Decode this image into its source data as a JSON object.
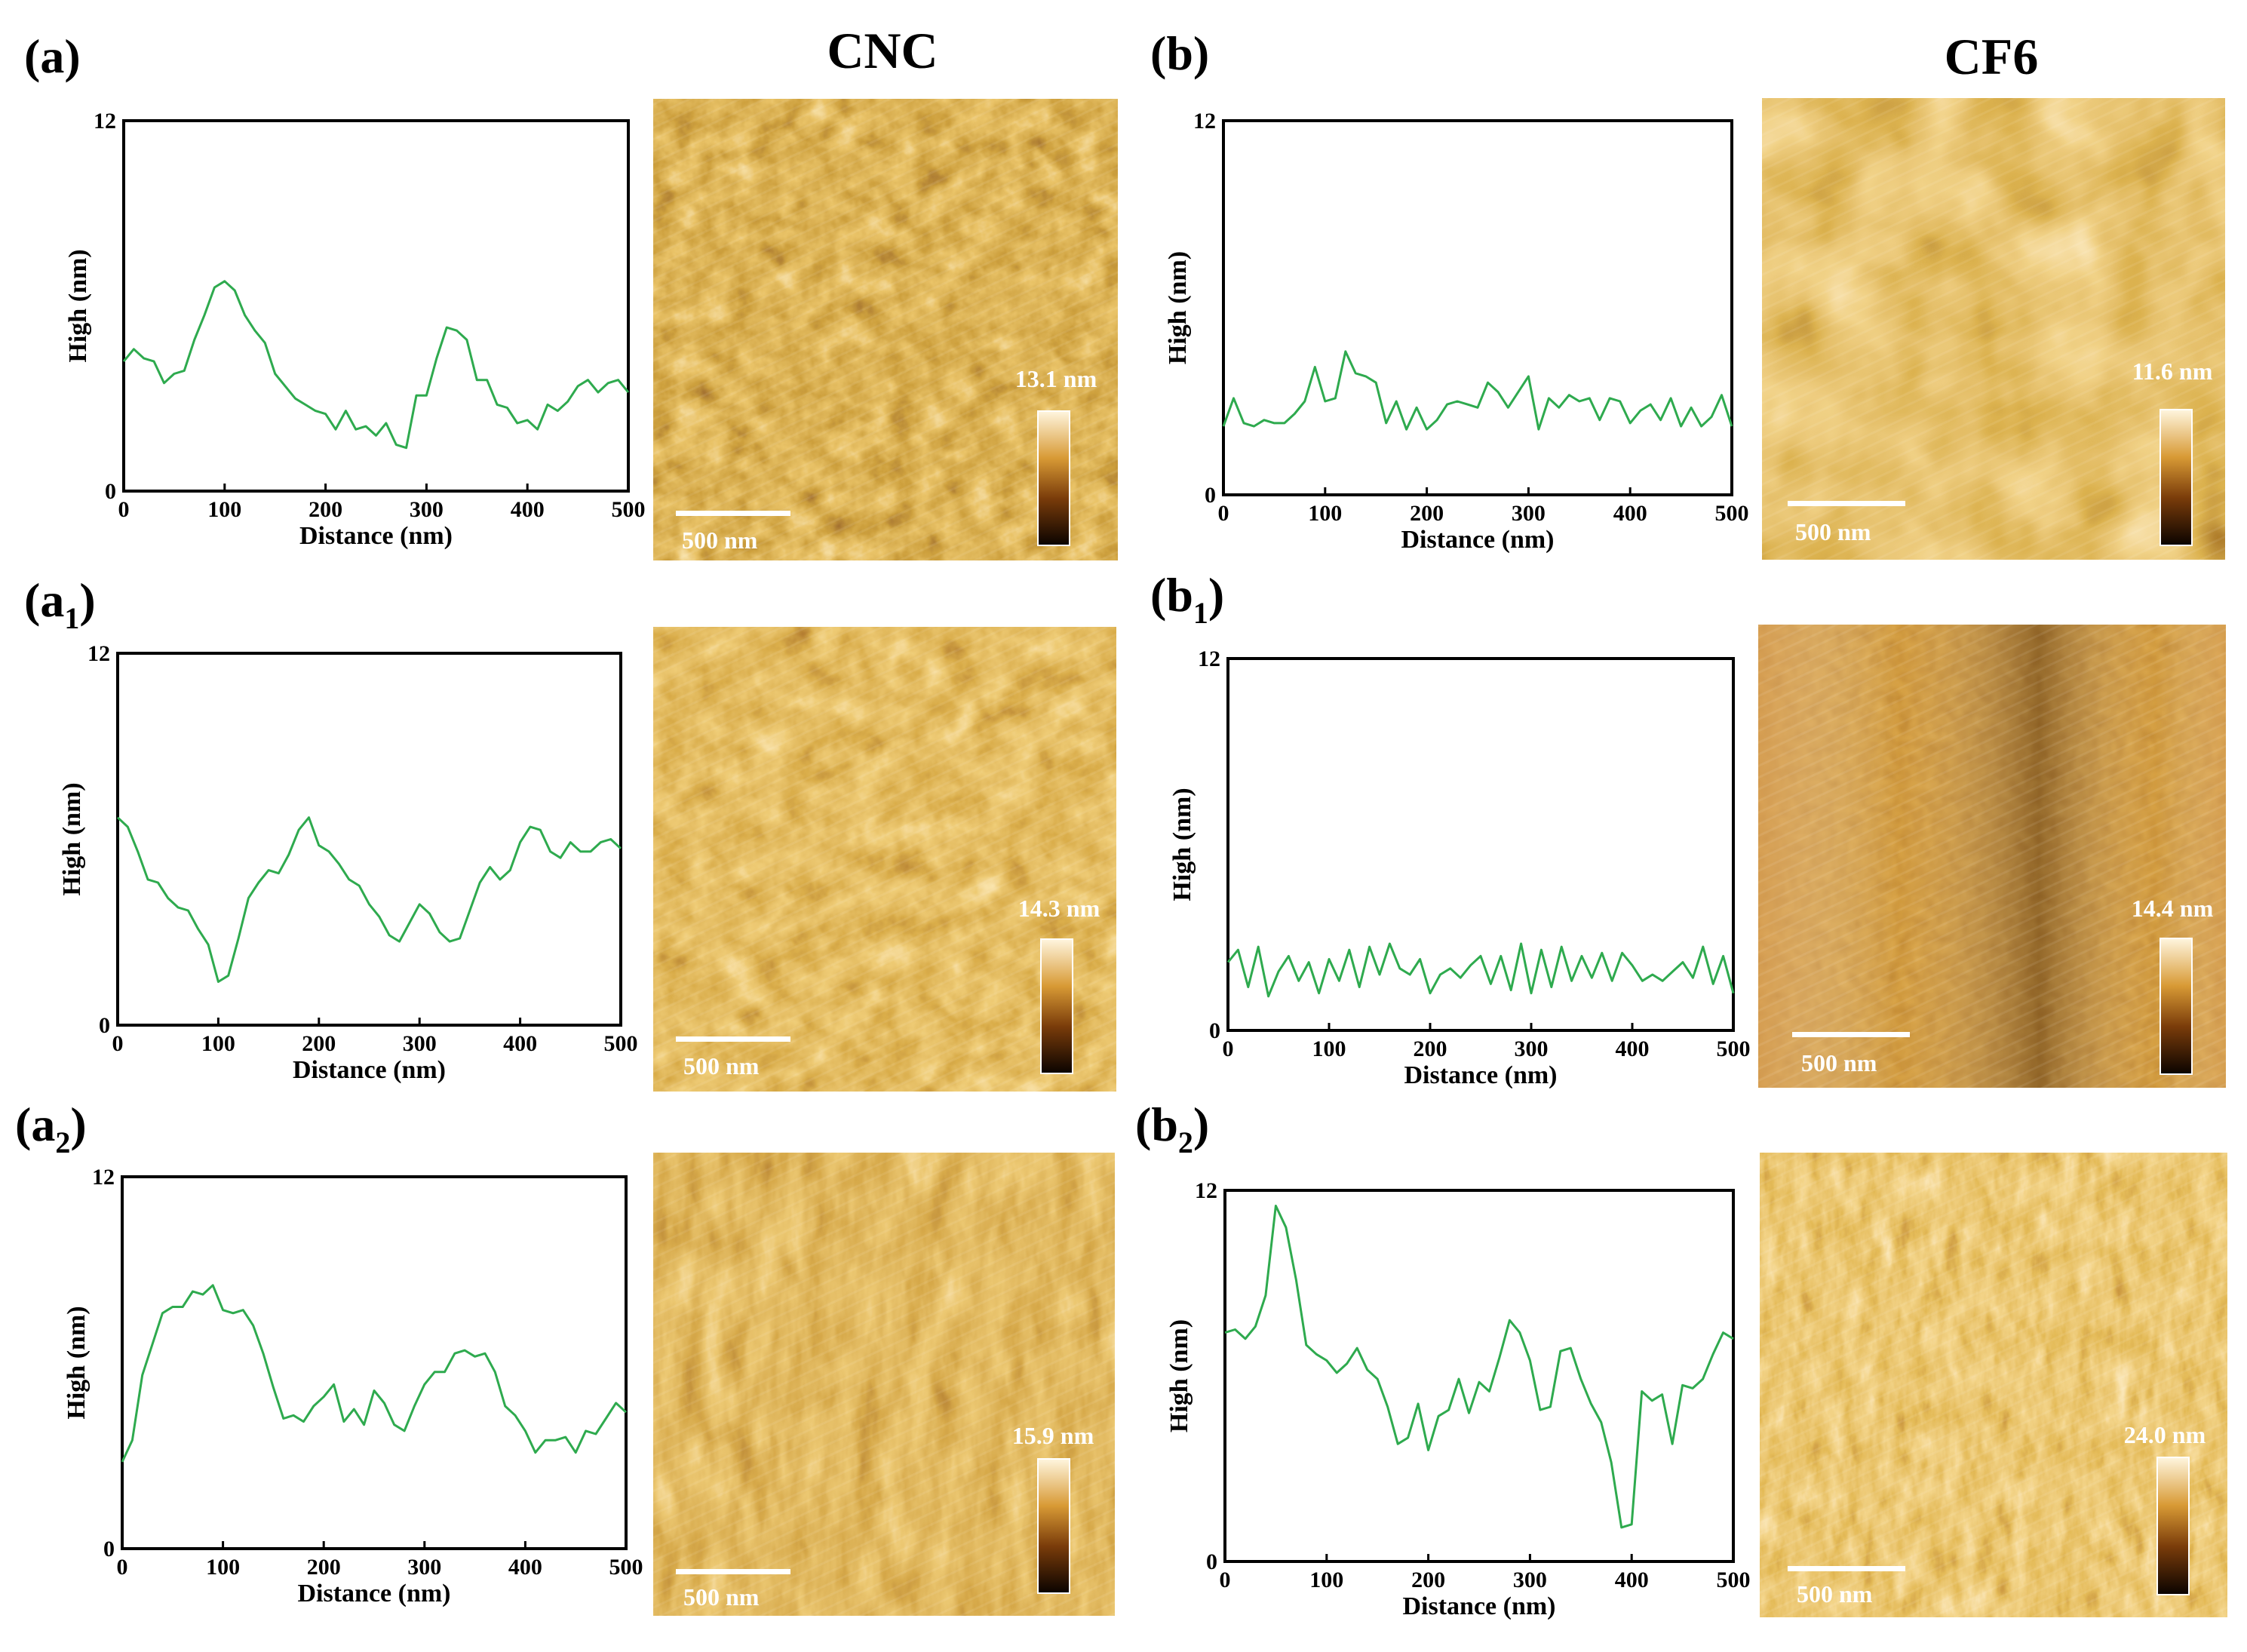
{
  "columns": {
    "left": "CNC",
    "right": "CF6"
  },
  "axis_common": {
    "xlabel": "Distance (nm)",
    "ylabel": "High (nm)"
  },
  "colors": {
    "line": "#2eaa4e",
    "afm_dark": "#2a0e02",
    "afm_mid": "#a8620f",
    "afm_light": "#fff6df"
  },
  "panels": [
    {
      "id": "a",
      "label": "(a)",
      "sub": "",
      "scale_value": "13.1 nm",
      "scalebar_label": "500 nm"
    },
    {
      "id": "a1",
      "label": "(a",
      "sub": "1",
      "scale_value": "14.3 nm",
      "scalebar_label": "500 nm"
    },
    {
      "id": "a2",
      "label": "(a",
      "sub": "2",
      "scale_value": "15.9 nm",
      "scalebar_label": "500 nm"
    },
    {
      "id": "b",
      "label": "(b)",
      "sub": "",
      "scale_value": "11.6 nm",
      "scalebar_label": "500 nm"
    },
    {
      "id": "b1",
      "label": "(b",
      "sub": "1",
      "scale_value": "14.4 nm",
      "scalebar_label": "500 nm"
    },
    {
      "id": "b2",
      "label": "(b",
      "sub": "2",
      "scale_value": "24.0 nm",
      "scalebar_label": "500 nm"
    }
  ],
  "chart_data": [
    {
      "id": "a",
      "type": "line",
      "title": "",
      "xlabel": "Distance (nm)",
      "ylabel": "High (nm)",
      "xlim": [
        0,
        500
      ],
      "ylim": [
        0,
        12
      ],
      "xticks": [
        0,
        100,
        200,
        300,
        400,
        500
      ],
      "yticks": [
        0,
        12
      ],
      "x": [
        0,
        10,
        20,
        30,
        40,
        50,
        60,
        70,
        80,
        90,
        100,
        110,
        120,
        130,
        140,
        150,
        160,
        170,
        180,
        190,
        200,
        210,
        220,
        230,
        240,
        250,
        260,
        270,
        280,
        290,
        300,
        310,
        320,
        330,
        340,
        350,
        360,
        370,
        380,
        390,
        400,
        410,
        420,
        430,
        440,
        450,
        460,
        470,
        480,
        490,
        500
      ],
      "y": [
        4.2,
        4.6,
        4.3,
        4.2,
        3.5,
        3.8,
        3.9,
        4.9,
        5.7,
        6.6,
        6.8,
        6.5,
        5.7,
        5.2,
        4.8,
        3.8,
        3.4,
        3.0,
        2.8,
        2.6,
        2.5,
        2.0,
        2.6,
        2.0,
        2.1,
        1.8,
        2.2,
        1.5,
        1.4,
        3.1,
        3.1,
        4.3,
        5.3,
        5.2,
        4.9,
        3.6,
        3.6,
        2.8,
        2.7,
        2.2,
        2.3,
        2.0,
        2.8,
        2.6,
        2.9,
        3.4,
        3.6,
        3.2,
        3.5,
        3.6,
        3.2
      ]
    },
    {
      "id": "a1",
      "type": "line",
      "title": "",
      "xlabel": "Distance (nm)",
      "ylabel": "High (nm)",
      "xlim": [
        0,
        500
      ],
      "ylim": [
        0,
        12
      ],
      "xticks": [
        0,
        100,
        200,
        300,
        400,
        500
      ],
      "yticks": [
        0,
        12
      ],
      "x": [
        0,
        10,
        20,
        30,
        40,
        50,
        60,
        70,
        80,
        90,
        100,
        110,
        120,
        130,
        140,
        150,
        160,
        170,
        180,
        190,
        200,
        210,
        220,
        230,
        240,
        250,
        260,
        270,
        280,
        290,
        300,
        310,
        320,
        330,
        340,
        350,
        360,
        370,
        380,
        390,
        400,
        410,
        420,
        430,
        440,
        450,
        460,
        470,
        480,
        490,
        500
      ],
      "y": [
        6.7,
        6.4,
        5.6,
        4.7,
        4.6,
        4.1,
        3.8,
        3.7,
        3.1,
        2.6,
        1.4,
        1.6,
        2.8,
        4.1,
        4.6,
        5.0,
        4.9,
        5.5,
        6.3,
        6.7,
        5.8,
        5.6,
        5.2,
        4.7,
        4.5,
        3.9,
        3.5,
        2.9,
        2.7,
        3.3,
        3.9,
        3.6,
        3.0,
        2.7,
        2.8,
        3.7,
        4.6,
        5.1,
        4.7,
        5.0,
        5.9,
        6.4,
        6.3,
        5.6,
        5.4,
        5.9,
        5.6,
        5.6,
        5.9,
        6.0,
        5.7
      ]
    },
    {
      "id": "a2",
      "type": "line",
      "title": "",
      "xlabel": "Distance (nm)",
      "ylabel": "High (nm)",
      "xlim": [
        0,
        500
      ],
      "ylim": [
        0,
        12
      ],
      "xticks": [
        0,
        100,
        200,
        300,
        400,
        500
      ],
      "yticks": [
        0,
        12
      ],
      "x": [
        0,
        10,
        20,
        30,
        40,
        50,
        60,
        70,
        80,
        90,
        100,
        110,
        120,
        130,
        140,
        150,
        160,
        170,
        180,
        190,
        200,
        210,
        220,
        230,
        240,
        250,
        260,
        270,
        280,
        290,
        300,
        310,
        320,
        330,
        340,
        350,
        360,
        370,
        380,
        390,
        400,
        410,
        420,
        430,
        440,
        450,
        460,
        470,
        480,
        490,
        500
      ],
      "y": [
        2.8,
        3.5,
        5.6,
        6.6,
        7.6,
        7.8,
        7.8,
        8.3,
        8.2,
        8.5,
        7.7,
        7.6,
        7.7,
        7.2,
        6.3,
        5.2,
        4.2,
        4.3,
        4.1,
        4.6,
        4.9,
        5.3,
        4.1,
        4.5,
        4.0,
        5.1,
        4.7,
        4.0,
        3.8,
        4.6,
        5.3,
        5.7,
        5.7,
        6.3,
        6.4,
        6.2,
        6.3,
        5.7,
        4.6,
        4.3,
        3.8,
        3.1,
        3.5,
        3.5,
        3.6,
        3.1,
        3.8,
        3.7,
        4.2,
        4.7,
        4.4
      ]
    },
    {
      "id": "b",
      "type": "line",
      "title": "",
      "xlabel": "Distance (nm)",
      "ylabel": "High (nm)",
      "xlim": [
        0,
        500
      ],
      "ylim": [
        0,
        12
      ],
      "xticks": [
        0,
        100,
        200,
        300,
        400,
        500
      ],
      "yticks": [
        0,
        12
      ],
      "x": [
        0,
        10,
        20,
        30,
        40,
        50,
        60,
        70,
        80,
        90,
        100,
        110,
        120,
        130,
        140,
        150,
        160,
        170,
        180,
        190,
        200,
        210,
        220,
        230,
        240,
        250,
        260,
        270,
        280,
        290,
        300,
        310,
        320,
        330,
        340,
        350,
        360,
        370,
        380,
        390,
        400,
        410,
        420,
        430,
        440,
        450,
        460,
        470,
        480,
        490,
        500
      ],
      "y": [
        2.2,
        3.1,
        2.3,
        2.2,
        2.4,
        2.3,
        2.3,
        2.6,
        3.0,
        4.1,
        3.0,
        3.1,
        4.6,
        3.9,
        3.8,
        3.6,
        2.3,
        3.0,
        2.1,
        2.8,
        2.1,
        2.4,
        2.9,
        3.0,
        2.9,
        2.8,
        3.6,
        3.3,
        2.8,
        3.3,
        3.8,
        2.1,
        3.1,
        2.8,
        3.2,
        3.0,
        3.1,
        2.4,
        3.1,
        3.0,
        2.3,
        2.7,
        2.9,
        2.4,
        3.1,
        2.2,
        2.8,
        2.2,
        2.5,
        3.2,
        2.2
      ]
    },
    {
      "id": "b1",
      "type": "line",
      "title": "",
      "xlabel": "Distance (nm)",
      "ylabel": "High (nm)",
      "xlim": [
        0,
        500
      ],
      "ylim": [
        0,
        12
      ],
      "xticks": [
        0,
        100,
        200,
        300,
        400,
        500
      ],
      "yticks": [
        0,
        12
      ],
      "x": [
        0,
        10,
        20,
        30,
        40,
        50,
        60,
        70,
        80,
        90,
        100,
        110,
        120,
        130,
        140,
        150,
        160,
        170,
        180,
        190,
        200,
        210,
        220,
        230,
        240,
        250,
        260,
        270,
        280,
        290,
        300,
        310,
        320,
        330,
        340,
        350,
        360,
        370,
        380,
        390,
        400,
        410,
        420,
        430,
        440,
        450,
        460,
        470,
        480,
        490,
        500
      ],
      "y": [
        2.2,
        2.6,
        1.4,
        2.7,
        1.1,
        1.9,
        2.4,
        1.6,
        2.2,
        1.2,
        2.3,
        1.6,
        2.6,
        1.4,
        2.7,
        1.8,
        2.8,
        2.0,
        1.8,
        2.3,
        1.2,
        1.8,
        2.0,
        1.7,
        2.1,
        2.4,
        1.5,
        2.4,
        1.3,
        2.8,
        1.2,
        2.6,
        1.4,
        2.7,
        1.6,
        2.4,
        1.7,
        2.5,
        1.6,
        2.5,
        2.1,
        1.6,
        1.8,
        1.6,
        1.9,
        2.2,
        1.7,
        2.7,
        1.5,
        2.4,
        1.2
      ]
    },
    {
      "id": "b2",
      "type": "line",
      "title": "",
      "xlabel": "Distance (nm)",
      "ylabel": "High (nm)",
      "xlim": [
        0,
        500
      ],
      "ylim": [
        0,
        12
      ],
      "xticks": [
        0,
        100,
        200,
        300,
        400,
        500
      ],
      "yticks": [
        0,
        12
      ],
      "x": [
        0,
        10,
        20,
        30,
        40,
        50,
        60,
        70,
        80,
        90,
        100,
        110,
        120,
        130,
        140,
        150,
        160,
        170,
        180,
        190,
        200,
        210,
        220,
        230,
        240,
        250,
        260,
        270,
        280,
        290,
        300,
        310,
        320,
        330,
        340,
        350,
        360,
        370,
        380,
        390,
        400,
        410,
        420,
        430,
        440,
        450,
        460,
        470,
        480,
        490,
        500
      ],
      "y": [
        7.4,
        7.5,
        7.2,
        7.6,
        8.6,
        11.5,
        10.8,
        9.1,
        7.0,
        6.7,
        6.5,
        6.1,
        6.4,
        6.9,
        6.2,
        5.9,
        5.0,
        3.8,
        4.0,
        5.1,
        3.6,
        4.7,
        4.9,
        5.9,
        4.8,
        5.8,
        5.5,
        6.6,
        7.8,
        7.4,
        6.5,
        4.9,
        5.0,
        6.8,
        6.9,
        5.9,
        5.1,
        4.5,
        3.2,
        1.1,
        1.2,
        5.5,
        5.2,
        5.4,
        3.8,
        5.7,
        5.6,
        5.9,
        6.7,
        7.4,
        7.2
      ]
    }
  ]
}
